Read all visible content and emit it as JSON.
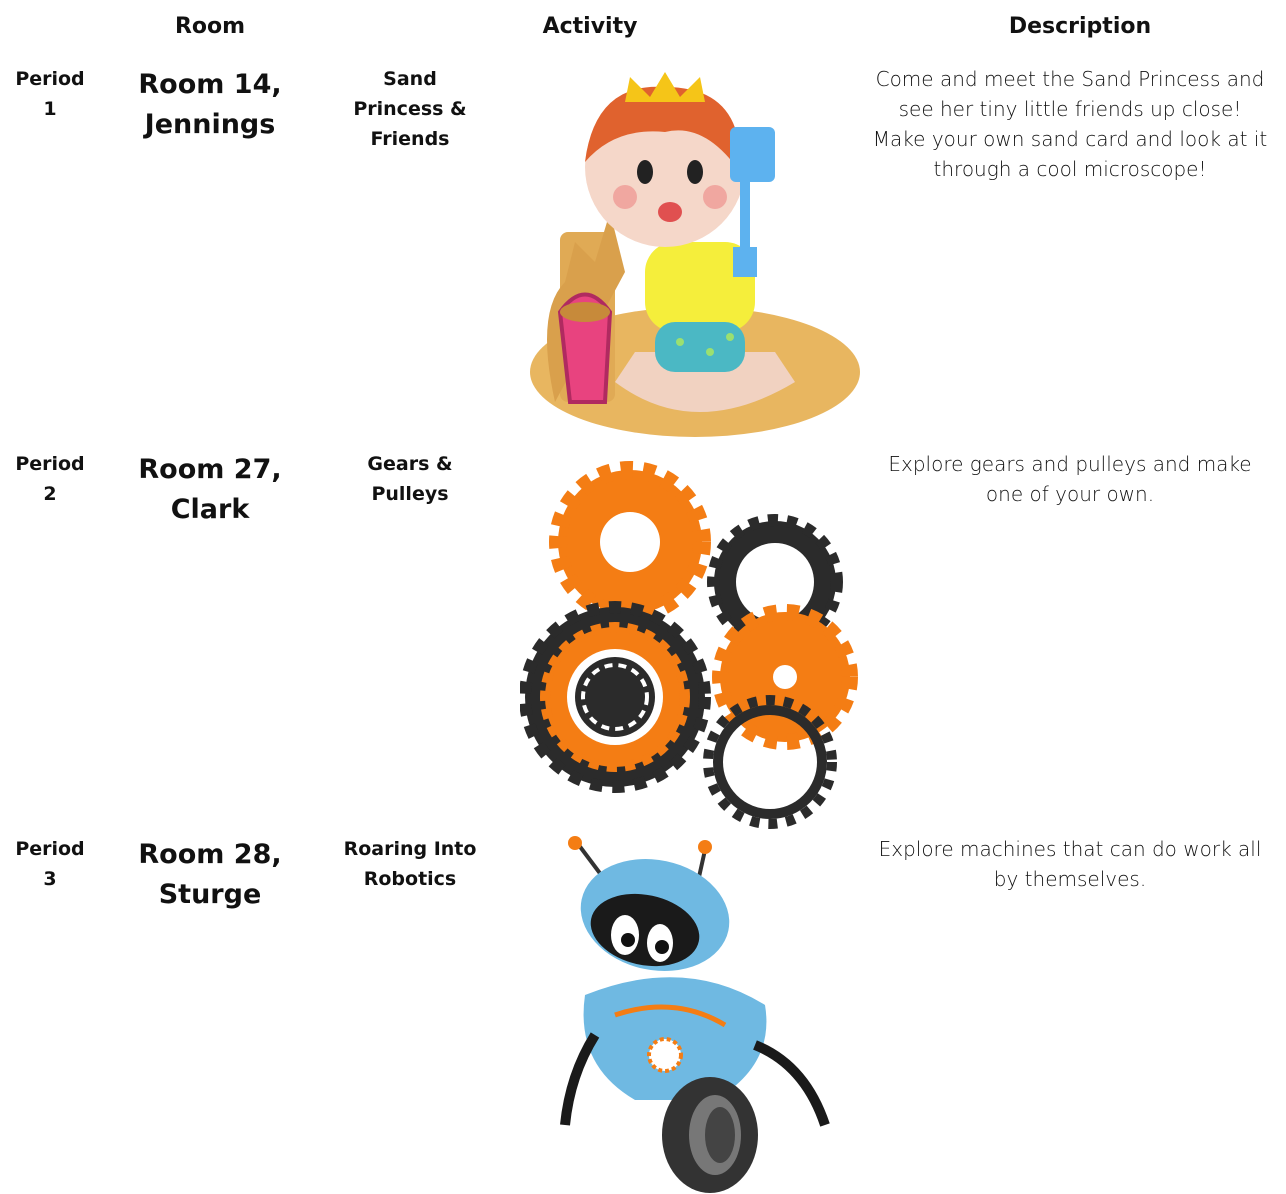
{
  "table": {
    "header": [
      "Room",
      "Activity",
      "Description"
    ],
    "rows": [
      {
        "period": "Period 1",
        "room": "Room 14, Jennings",
        "activity": "Sand Princess & Friends",
        "description": "Come and meet the Sand Princess and see her tiny little friends up close! Make your own sand card and look at it through a cool microscope!"
      },
      {
        "period": "Period 2",
        "room": "Room 27, Clark",
        "activity": "Gears & Pulleys",
        "description": "Explore gears and pulleys and make one of your own."
      },
      {
        "period": "Period 3",
        "room": "Room 28, Sturge",
        "activity": "Roaring Into Robotics",
        "description": "Explore machines that can do work all by themselves."
      }
    ]
  }
}
